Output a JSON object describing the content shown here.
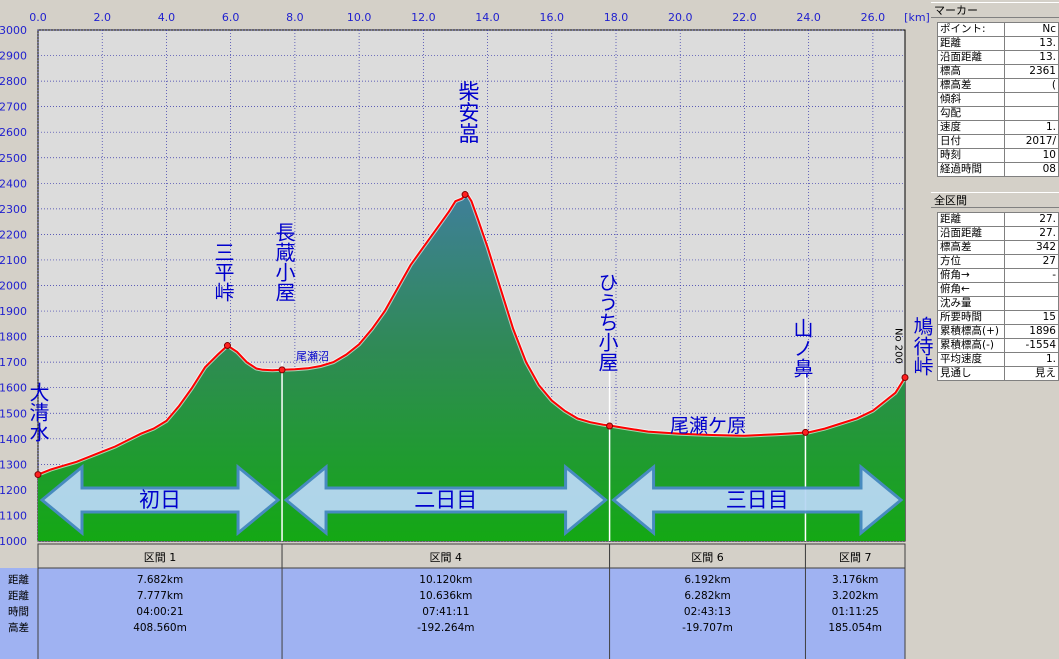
{
  "chart_data": {
    "type": "area",
    "x_unit": "[km]",
    "xlim": [
      0,
      27.0
    ],
    "ylim": [
      1000,
      3000
    ],
    "x_ticks": [
      "0.0",
      "2.0",
      "4.0",
      "6.0",
      "8.0",
      "10.0",
      "12.0",
      "14.0",
      "16.0",
      "18.0",
      "20.0",
      "22.0",
      "24.0",
      "26.0"
    ],
    "y_ticks": [
      "3000",
      "2900",
      "2800",
      "2700",
      "2600",
      "2500",
      "2400",
      "2300",
      "2200",
      "2100",
      "2000",
      "1900",
      "1800",
      "1700",
      "1600",
      "1500",
      "1400",
      "1300",
      "1200",
      "1100",
      "1000"
    ],
    "grid": true,
    "profile": {
      "x": [
        0.0,
        0.4,
        0.8,
        1.2,
        1.6,
        2.0,
        2.4,
        2.8,
        3.2,
        3.6,
        4.0,
        4.4,
        4.8,
        5.2,
        5.6,
        5.9,
        6.2,
        6.5,
        6.8,
        7.0,
        7.3,
        7.6,
        8.0,
        8.4,
        8.8,
        9.2,
        9.6,
        10.0,
        10.4,
        10.8,
        11.2,
        11.6,
        12.0,
        12.4,
        12.8,
        13.0,
        13.2,
        13.35,
        13.5,
        13.7,
        14.0,
        14.4,
        14.8,
        15.2,
        15.6,
        16.0,
        16.4,
        16.8,
        17.2,
        17.6,
        17.9,
        18.4,
        19.0,
        20.0,
        21.0,
        22.0,
        23.0,
        24.0,
        24.5,
        25.0,
        25.5,
        26.0,
        26.4,
        26.7,
        27.0
      ],
      "y": [
        1260,
        1280,
        1295,
        1310,
        1330,
        1350,
        1370,
        1395,
        1420,
        1440,
        1470,
        1530,
        1600,
        1680,
        1730,
        1765,
        1740,
        1700,
        1675,
        1670,
        1668,
        1670,
        1672,
        1676,
        1685,
        1700,
        1730,
        1770,
        1830,
        1900,
        1990,
        2080,
        2150,
        2220,
        2290,
        2330,
        2340,
        2360,
        2330,
        2260,
        2150,
        1990,
        1830,
        1700,
        1610,
        1550,
        1510,
        1480,
        1465,
        1455,
        1450,
        1440,
        1428,
        1420,
        1415,
        1412,
        1418,
        1425,
        1440,
        1460,
        1480,
        1510,
        1550,
        1580,
        1640
      ]
    },
    "points": [
      {
        "label": "大清水",
        "x": 0.0,
        "y": 1260
      },
      {
        "label": "三平峠",
        "x": 5.9,
        "y": 1765
      },
      {
        "label": "長蔵小屋",
        "x": 7.6,
        "y": 1670
      },
      {
        "label": "柴安嵓",
        "x": 13.3,
        "y": 2356
      },
      {
        "label": "ひうち小屋",
        "x": 17.8,
        "y": 1450
      },
      {
        "label": "尾瀬ケ原",
        "x": 21.5,
        "y": 1412
      },
      {
        "label": "山ノ鼻",
        "x": 23.9,
        "y": 1425
      },
      {
        "label": "鳩待峠",
        "x": 27.0,
        "y": 1640
      }
    ],
    "small_labels": [
      {
        "text": "尾瀬沼",
        "x": 8.2,
        "y": 1720
      },
      {
        "text": "No 200",
        "x": 26.8,
        "y": 1810
      }
    ],
    "day_arrows": [
      {
        "label": "初日",
        "x_start": 0.0,
        "x_end": 7.6
      },
      {
        "label": "二日目",
        "x_start": 7.6,
        "x_end": 17.8
      },
      {
        "label": "三日目",
        "x_start": 17.8,
        "x_end": 27.0
      }
    ]
  },
  "sections": {
    "row_labels": [
      "距離",
      "距離",
      "時間",
      "高差"
    ],
    "columns": [
      {
        "header": "区間 1",
        "x_start": 0.0,
        "x_end": 7.6,
        "values": [
          "7.682km",
          "7.777km",
          "04:00:21",
          "408.560m"
        ]
      },
      {
        "header": "区間 4",
        "x_start": 7.6,
        "x_end": 17.8,
        "values": [
          "10.120km",
          "10.636km",
          "07:41:11",
          "-192.264m"
        ]
      },
      {
        "header": "区間 6",
        "x_start": 17.8,
        "x_end": 23.9,
        "values": [
          "6.192km",
          "6.282km",
          "02:43:13",
          "-19.707m"
        ]
      },
      {
        "header": "区間 7",
        "x_start": 23.9,
        "x_end": 27.0,
        "values": [
          "3.176km",
          "3.202km",
          "01:11:25",
          "185.054m"
        ]
      }
    ]
  },
  "marker_panel": {
    "title": "マーカー",
    "rows": [
      {
        "k": "ポイント:",
        "v": "Nc"
      },
      {
        "k": "距離",
        "v": "13."
      },
      {
        "k": "沿面距離",
        "v": "13."
      },
      {
        "k": "標高",
        "v": "2361"
      },
      {
        "k": "標高差",
        "v": "("
      },
      {
        "k": "傾斜",
        "v": ""
      },
      {
        "k": "勾配",
        "v": ""
      },
      {
        "k": "速度",
        "v": "1."
      },
      {
        "k": "日付",
        "v": "2017/"
      },
      {
        "k": "時刻",
        "v": "10"
      },
      {
        "k": "経過時間",
        "v": "08"
      }
    ]
  },
  "total_panel": {
    "title": "全区間",
    "rows": [
      {
        "k": "距離",
        "v": "27."
      },
      {
        "k": "沿面距離",
        "v": "27."
      },
      {
        "k": "標高差",
        "v": "342"
      },
      {
        "k": "方位",
        "v": "27"
      },
      {
        "k": "俯角→",
        "v": "-"
      },
      {
        "k": "俯角←",
        "v": ""
      },
      {
        "k": "沈み量",
        "v": ""
      },
      {
        "k": "所要時間",
        "v": "15"
      },
      {
        "k": "累積標高(+)",
        "v": "1896"
      },
      {
        "k": "累積標高(-)",
        "v": "-1554"
      },
      {
        "k": "平均速度",
        "v": "1."
      },
      {
        "k": "見通し",
        "v": "見え"
      }
    ]
  },
  "colors": {
    "plot_bg": "#dcdcdc",
    "grid": "#3333aa",
    "profile_fill_top": "#3f7f9a",
    "profile_fill_bottom": "#14a814",
    "profile_line": "#ff0000",
    "label_text": "#0000cc",
    "arrow_fill": "#b8d8f4",
    "arrow_stroke": "#4a8ac8",
    "section_bg": "#9fb2f2",
    "axis_text": "#1f1fcf"
  }
}
